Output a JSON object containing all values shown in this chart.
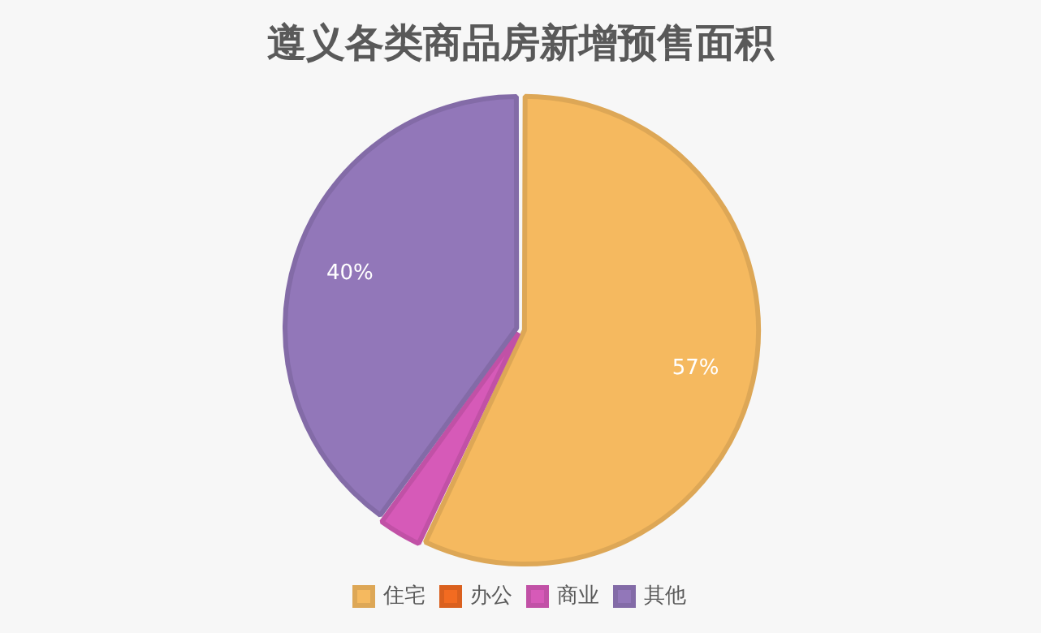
{
  "chart_data": {
    "type": "pie",
    "title": "遵义各类商品房新增预售面积",
    "categories": [
      "住宅",
      "办公",
      "商业",
      "其他"
    ],
    "values": [
      57,
      0,
      3,
      40
    ],
    "colors": [
      "#f5b95f",
      "#f26b21",
      "#d65ab8",
      "#9277b9"
    ],
    "value_labels": [
      "57%",
      null,
      null,
      "40%"
    ],
    "legend": "bottom"
  }
}
